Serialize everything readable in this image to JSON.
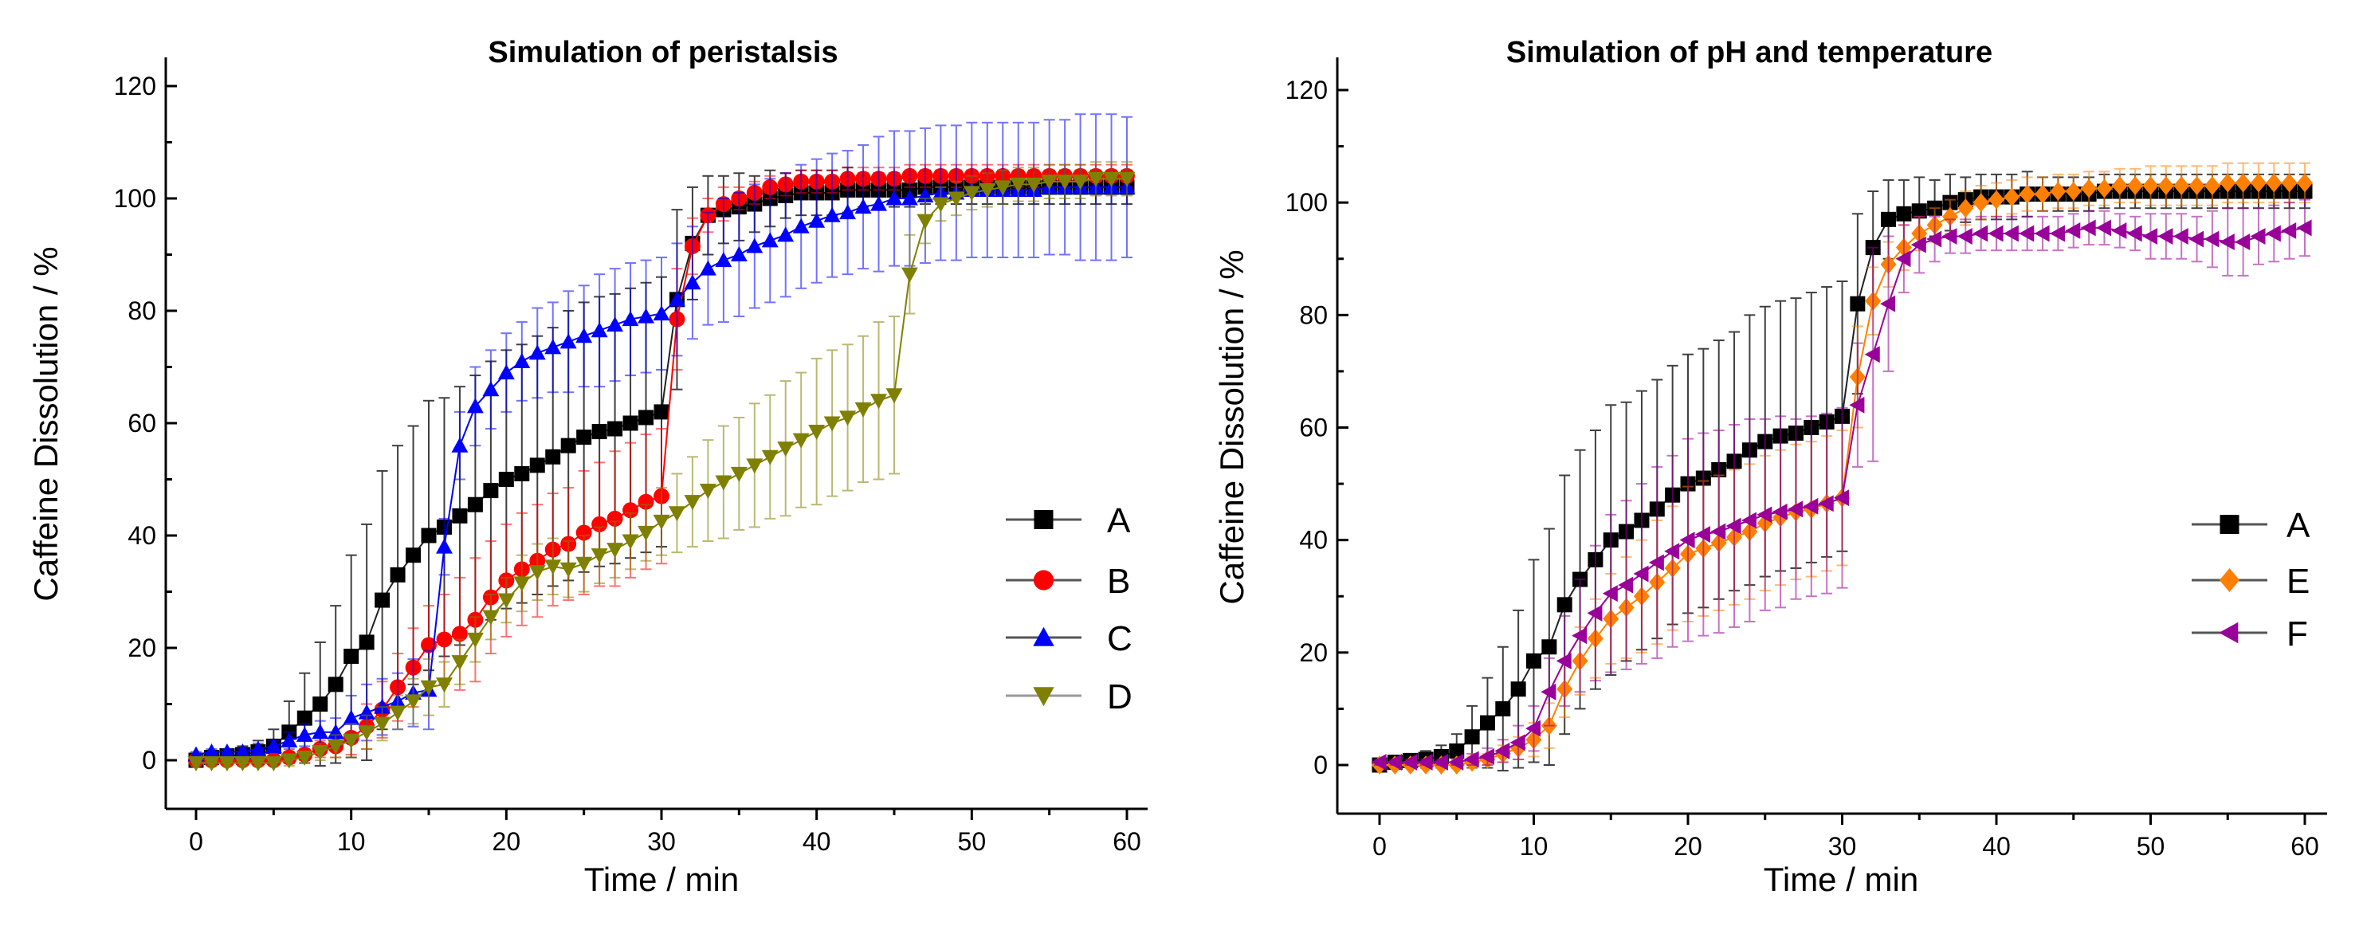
{
  "chart_data": [
    {
      "type": "line",
      "title": "Simulation of peristalsis",
      "xlabel": "Time / min",
      "ylabel": "Caffeine Dissolution / %",
      "xlim": [
        0,
        60
      ],
      "ylim": [
        0,
        120
      ],
      "xticks": [
        "0",
        "10",
        "20",
        "30",
        "40",
        "50",
        "60"
      ],
      "yticks": [
        "0",
        "20",
        "40",
        "60",
        "80",
        "100",
        "120"
      ],
      "grid": false,
      "legend_position": "right",
      "x_step": 1,
      "series": [
        {
          "name": "A",
          "marker": "square",
          "color": "#000000",
          "values": [
            0,
            0.5,
            0.8,
            1,
            1.5,
            2.5,
            5,
            7.5,
            10,
            13.5,
            18.5,
            21,
            28.5,
            33,
            36.5,
            40,
            41.5,
            43.5,
            45.5,
            48,
            50,
            51,
            52.5,
            54,
            56,
            57.5,
            58.5,
            59,
            60,
            61,
            62,
            82,
            92,
            97,
            98,
            98.5,
            99,
            100,
            100.5,
            101,
            101,
            101,
            101.5,
            101.5,
            101.5,
            101.5,
            101.5,
            102,
            102,
            102,
            102,
            102,
            102,
            102,
            102,
            102,
            102,
            102,
            102,
            102,
            102
          ],
          "errors": [
            0,
            0.5,
            1,
            1.5,
            2,
            3,
            5.5,
            8,
            11,
            14,
            18,
            21,
            23,
            23,
            23,
            24,
            23,
            23,
            23,
            23,
            23,
            23,
            23,
            23,
            24,
            24,
            24,
            24,
            24,
            24,
            24,
            16,
            10,
            7,
            6,
            6,
            5,
            5,
            4,
            4,
            4,
            4,
            4,
            3,
            3,
            3,
            3,
            3,
            3,
            3,
            3,
            3,
            3,
            3,
            3,
            3,
            3,
            3,
            3,
            3,
            3
          ]
        },
        {
          "name": "B",
          "marker": "circle",
          "color": "#ff0000",
          "values": [
            0,
            0,
            0,
            0,
            0,
            0,
            0.5,
            1,
            2,
            2.5,
            4,
            6,
            9,
            13,
            16.5,
            20.5,
            21.5,
            22.5,
            25,
            29,
            32,
            34,
            35.5,
            37.5,
            38.5,
            40.5,
            42,
            43,
            44.5,
            46,
            47,
            78.5,
            91.5,
            97,
            99,
            100,
            101,
            102,
            102.5,
            103,
            103,
            103,
            103.5,
            103.5,
            103.5,
            103.5,
            104,
            104,
            104,
            104,
            104,
            104,
            104,
            104,
            104,
            104,
            104,
            104,
            104,
            104,
            104
          ],
          "errors": [
            0.5,
            0.5,
            0.5,
            0.5,
            0.5,
            0.5,
            1,
            1,
            1.5,
            2,
            3,
            4,
            5,
            6,
            7,
            7,
            8,
            10,
            11,
            10,
            10,
            10,
            10,
            10,
            10,
            11,
            11,
            12,
            12,
            12,
            12,
            9,
            5,
            3,
            3,
            2,
            2,
            2,
            2,
            2,
            2,
            2,
            2,
            2,
            2,
            2,
            2,
            2,
            2,
            2,
            2,
            2,
            2,
            2,
            2,
            2,
            2,
            2,
            2,
            2,
            2
          ]
        },
        {
          "name": "C",
          "marker": "triangle-up",
          "color": "#0000ff",
          "values": [
            1,
            1.5,
            1.5,
            1.5,
            2,
            2.5,
            3.5,
            4.5,
            5,
            5,
            7.5,
            8.5,
            9.5,
            10.5,
            12,
            12.5,
            38,
            56,
            63,
            66,
            69,
            71,
            72.5,
            73.5,
            74.5,
            75.5,
            76.5,
            77.5,
            78.5,
            79,
            79.5,
            82,
            85,
            87.5,
            89,
            90,
            91.5,
            92.5,
            93.5,
            95,
            96,
            97,
            97.5,
            98.5,
            99,
            100,
            100,
            100.5,
            101,
            101,
            101.5,
            101.5,
            101.5,
            101.5,
            101.5,
            102,
            102,
            102,
            102,
            102,
            102
          ],
          "errors": [
            0.5,
            0.5,
            0.5,
            0.5,
            1,
            1,
            1.5,
            2,
            2,
            2.5,
            4,
            5,
            5,
            5,
            6,
            7,
            5,
            6,
            7,
            7,
            7,
            7,
            8,
            8,
            9,
            9,
            10,
            10,
            10,
            10,
            10,
            10,
            10,
            10,
            11,
            11,
            11,
            11,
            11,
            11,
            11,
            11,
            11,
            11,
            12,
            12,
            12,
            12,
            12,
            12,
            12,
            12,
            12,
            12,
            12,
            12,
            12,
            13,
            13,
            13,
            12.5
          ]
        },
        {
          "name": "D",
          "marker": "triangle-down",
          "color": "#808000",
          "values": [
            -0.5,
            -0.5,
            -0.5,
            -0.5,
            -0.5,
            -0.5,
            0,
            0.5,
            1.5,
            2.5,
            3.5,
            5,
            6.5,
            8.5,
            10.5,
            13,
            13.5,
            17.5,
            21.5,
            25.5,
            28.5,
            31.5,
            33.5,
            34.5,
            34,
            35,
            36.5,
            37.5,
            39,
            40.5,
            42.5,
            44,
            46,
            48,
            49.5,
            51,
            52.5,
            54,
            55.5,
            57,
            58.5,
            60,
            61,
            62.5,
            64,
            65,
            86.5,
            96,
            99,
            100,
            101,
            101.5,
            102,
            102.5,
            102.5,
            103,
            103,
            103,
            103.5,
            103.5,
            103.5
          ],
          "errors": [
            0.5,
            0.5,
            0.5,
            0.5,
            0.5,
            0.5,
            1,
            1,
            1.5,
            2,
            3,
            3,
            3,
            3,
            4,
            5,
            4,
            4,
            4,
            4,
            4,
            5,
            5,
            5,
            5,
            5,
            5,
            5,
            5,
            5,
            6,
            7,
            8,
            9,
            10,
            10,
            11,
            11,
            12,
            12,
            13,
            13,
            13,
            13,
            14,
            14,
            7,
            4,
            3,
            3,
            3,
            3,
            3,
            3,
            3,
            3,
            3,
            3,
            3,
            3,
            3
          ]
        }
      ]
    },
    {
      "type": "line",
      "title": "Simulation of pH and temperature",
      "xlabel": "Time / min",
      "ylabel": "Caffeine Dissolution / %",
      "xlim": [
        0,
        60
      ],
      "ylim": [
        0,
        120
      ],
      "xticks": [
        "0",
        "10",
        "20",
        "30",
        "40",
        "50",
        "60"
      ],
      "yticks": [
        "0",
        "20",
        "40",
        "60",
        "80",
        "100",
        "120"
      ],
      "grid": false,
      "legend_position": "right",
      "x_step": 1,
      "series": [
        {
          "name": "A",
          "marker": "square",
          "color": "#000000",
          "values": [
            0,
            0.5,
            0.8,
            1,
            1.5,
            2.5,
            5,
            7.5,
            10,
            13.5,
            18.5,
            21,
            28.5,
            33,
            36.5,
            40,
            41.5,
            43.5,
            45.5,
            48,
            50,
            51,
            52.5,
            54,
            56,
            57.5,
            58.5,
            59,
            60,
            61,
            62,
            82,
            92,
            97,
            98,
            98.5,
            99,
            100,
            100.5,
            101,
            101,
            101,
            101.5,
            101.5,
            101.5,
            101.5,
            101.5,
            102,
            102,
            102,
            102,
            102,
            102,
            102,
            102,
            102,
            102,
            102,
            102,
            102,
            102
          ],
          "errors": [
            0,
            0.5,
            1,
            1.5,
            2,
            3,
            5.5,
            8,
            11,
            14,
            18,
            21,
            23,
            23,
            23,
            24,
            23,
            23,
            23,
            23,
            23,
            23,
            23,
            23,
            24,
            24,
            24,
            24,
            24,
            24,
            24,
            16,
            10,
            7,
            6,
            6,
            5,
            5,
            4,
            4,
            4,
            4,
            4,
            3,
            3,
            3,
            3,
            3,
            3,
            3,
            3,
            3,
            3,
            3,
            3,
            3,
            3,
            3,
            3,
            3,
            3
          ]
        },
        {
          "name": "E",
          "marker": "diamond",
          "color": "#ff8000",
          "values": [
            0,
            0,
            0,
            0,
            0,
            0,
            0.5,
            1,
            2,
            3,
            4.5,
            7,
            13.5,
            18.5,
            22.5,
            26,
            28,
            30,
            32.5,
            35,
            37.5,
            38.5,
            39.5,
            40.5,
            41.5,
            43,
            44,
            45,
            45.5,
            46.5,
            47.5,
            69,
            82.5,
            89,
            92,
            94.5,
            96,
            97.5,
            99,
            100,
            100.5,
            101,
            101.5,
            101.5,
            102,
            102,
            102.5,
            102.5,
            103,
            103,
            103,
            103,
            103,
            103,
            103,
            103.5,
            103.5,
            103.5,
            103.5,
            103.5,
            103.5
          ],
          "errors": [
            0.5,
            0.5,
            0.5,
            0.5,
            0.5,
            0.5,
            1,
            1,
            1.5,
            2,
            3,
            4,
            5,
            6,
            7,
            8,
            9,
            10,
            11,
            11,
            12,
            12,
            12,
            12,
            12,
            12,
            12,
            12,
            12,
            12,
            12,
            9,
            6,
            4,
            4,
            3,
            3,
            3,
            3,
            3,
            3,
            3,
            3,
            3,
            3,
            3,
            3,
            3,
            3,
            3,
            3.5,
            3.5,
            3.5,
            3.5,
            3.5,
            3.5,
            3.5,
            3.5,
            3.5,
            3.5,
            3.5
          ]
        },
        {
          "name": "F",
          "marker": "triangle-left",
          "color": "#990099",
          "values": [
            0.5,
            0.5,
            0.5,
            0.5,
            0.5,
            0.5,
            1,
            1.5,
            2.5,
            4,
            6.5,
            13,
            18.5,
            23,
            27,
            30.5,
            32,
            34,
            36,
            38,
            40,
            41,
            41.5,
            42.5,
            43.5,
            44.5,
            45,
            45.5,
            46,
            46.5,
            47.5,
            64,
            73,
            82,
            90,
            92.5,
            93.5,
            94,
            94,
            94.5,
            94.5,
            94.5,
            94.5,
            94.5,
            94.5,
            95,
            95.5,
            95.5,
            95,
            94.5,
            94,
            94,
            94,
            93.5,
            93.5,
            93,
            93,
            94,
            94.5,
            95,
            95.5
          ],
          "errors": [
            0.5,
            0.5,
            0.5,
            0.5,
            0.5,
            0.5,
            1,
            1.5,
            2,
            3,
            4,
            6,
            8,
            10,
            12,
            14,
            15,
            16,
            17,
            17,
            18,
            18,
            18,
            18,
            18,
            17,
            17,
            16,
            16,
            16,
            16,
            11,
            19,
            12,
            6,
            5,
            4,
            3,
            3,
            3,
            3,
            3,
            3,
            3,
            3,
            3,
            3,
            3,
            3,
            3,
            4,
            4,
            4,
            4,
            5,
            6,
            6,
            5,
            5,
            5,
            5
          ]
        }
      ]
    }
  ]
}
